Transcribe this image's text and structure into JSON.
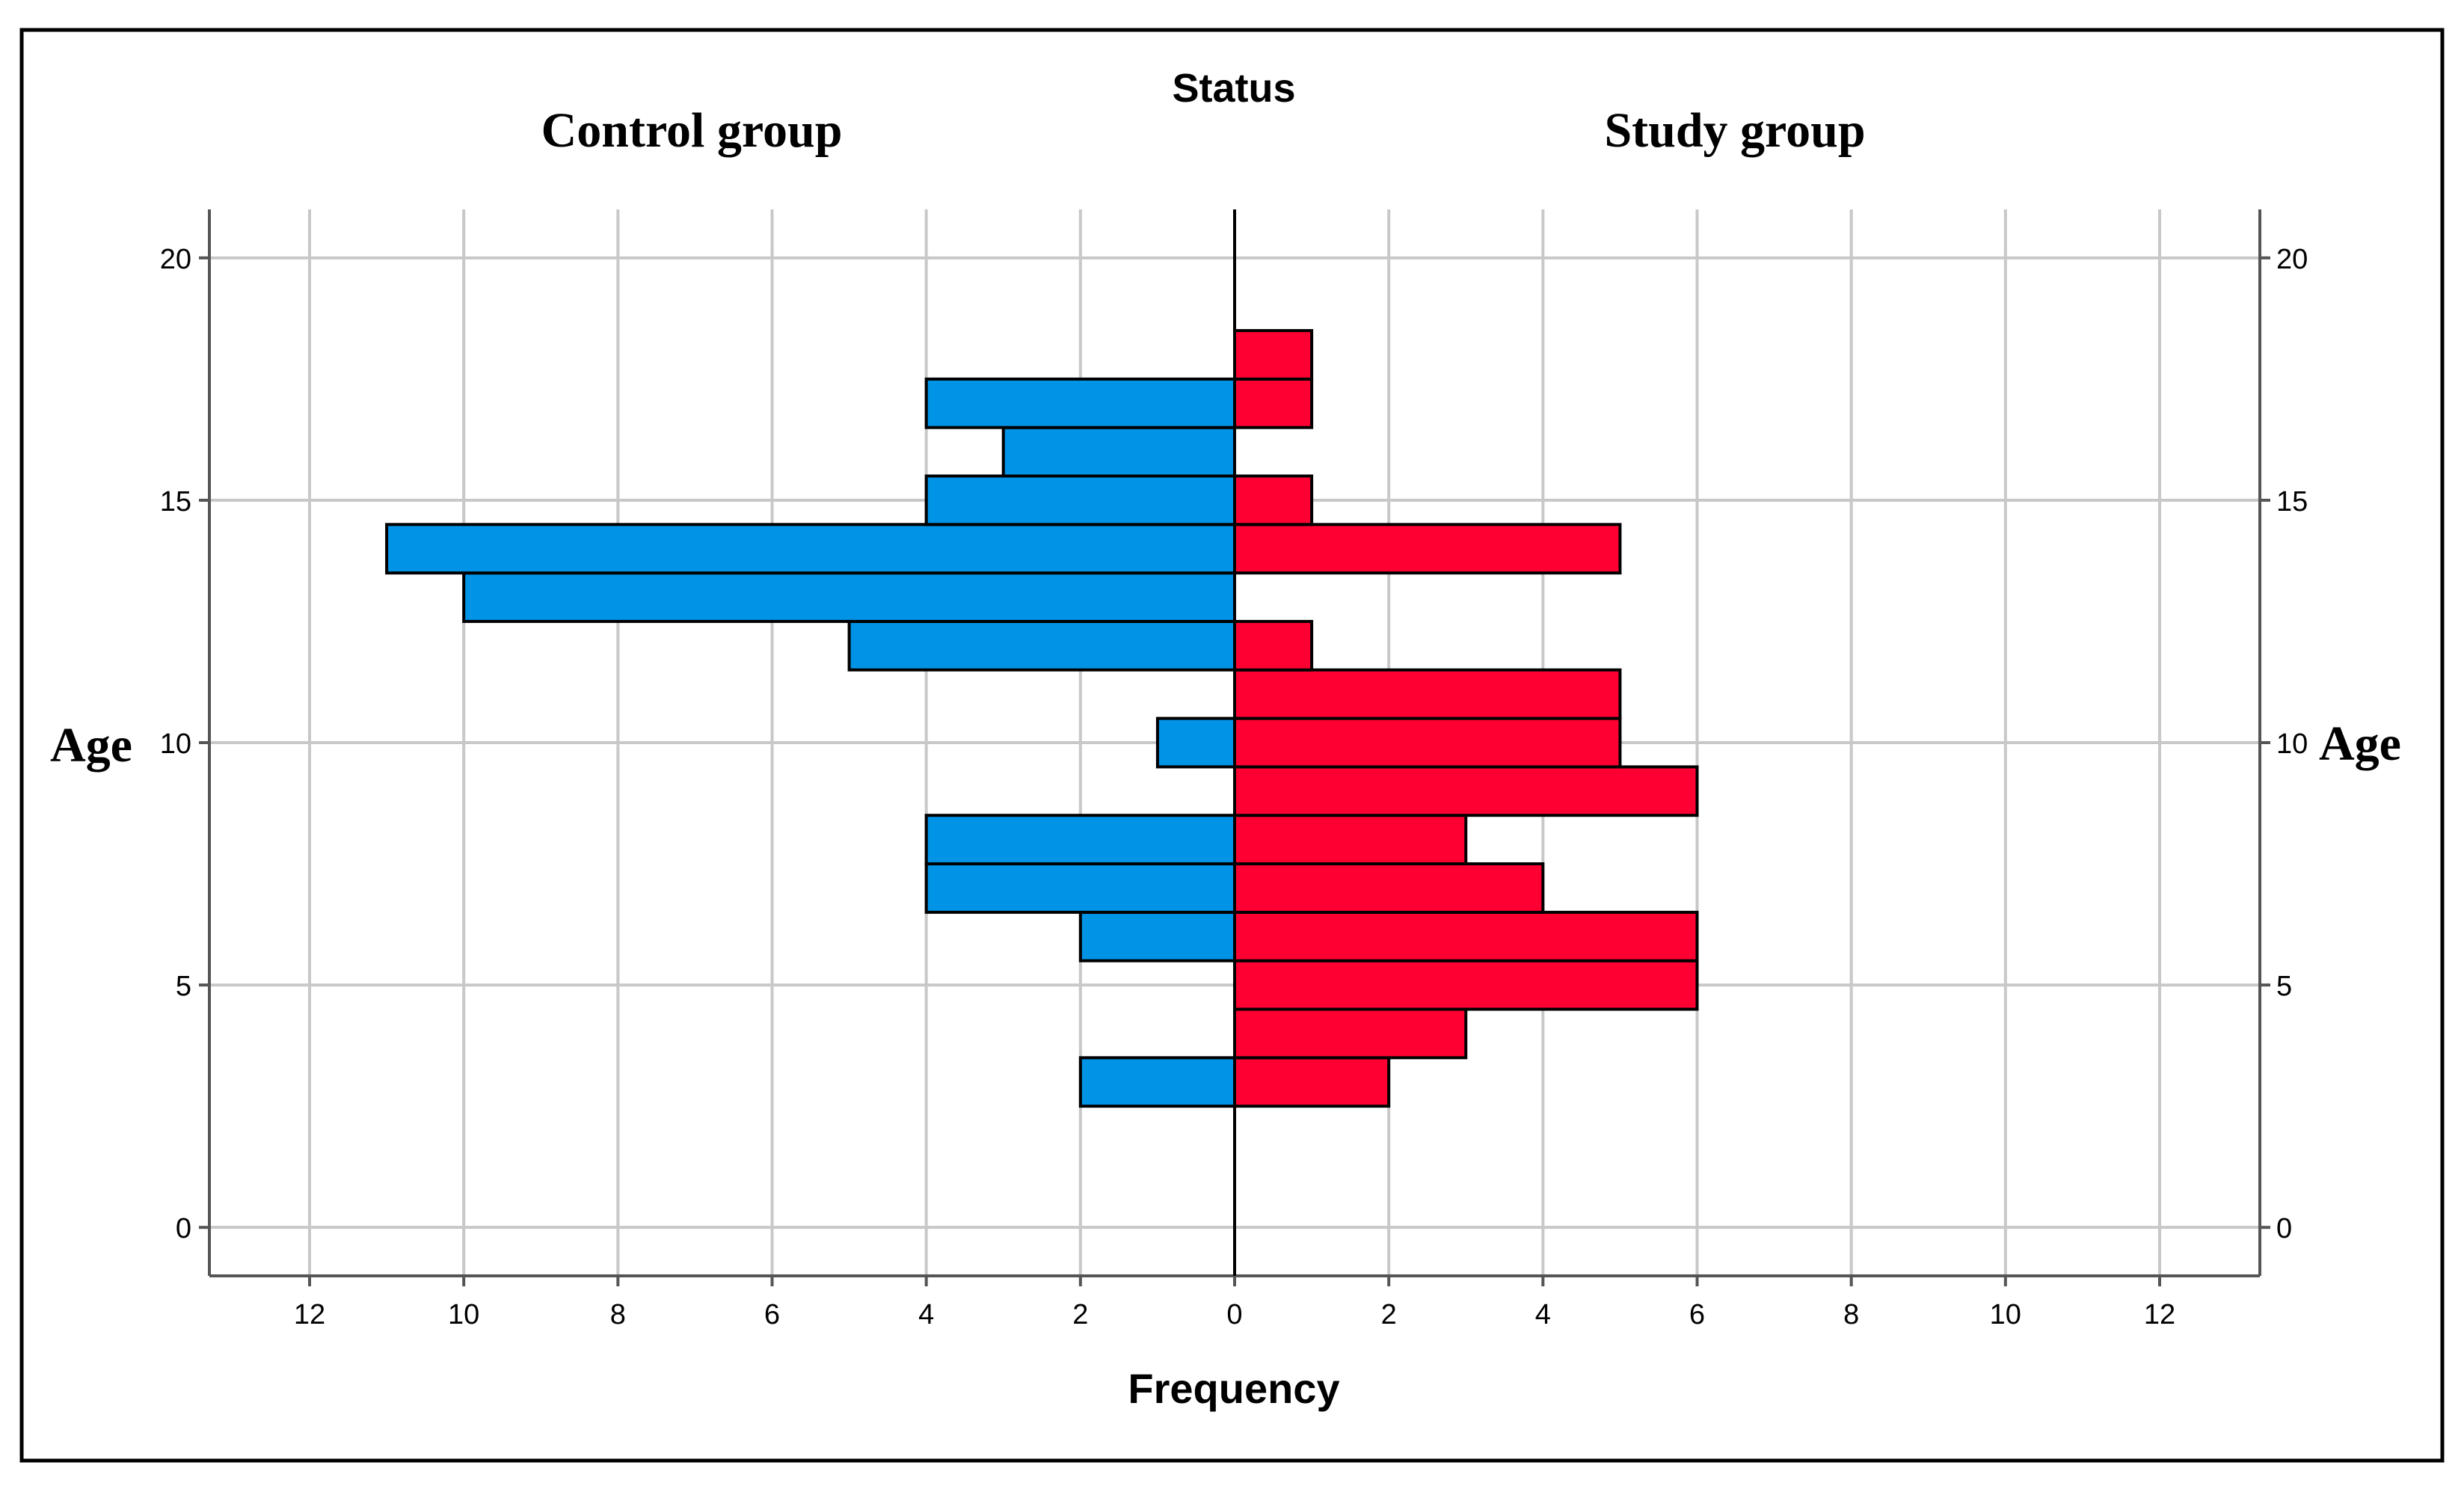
{
  "chart_data": {
    "type": "bar",
    "orientation": "horizontal",
    "layout": "population-pyramid",
    "title": "Status",
    "left_group_label": "Control group",
    "right_group_label": "Study group",
    "xlabel": "Frequency",
    "ylabel_left": "Age",
    "ylabel_right": "Age",
    "xlim": [
      -13.3,
      13.3
    ],
    "ylim": [
      -1,
      21
    ],
    "x_ticks": [
      -12,
      -10,
      -8,
      -6,
      -4,
      -2,
      0,
      2,
      4,
      6,
      8,
      10,
      12
    ],
    "x_tick_labels": [
      "12",
      "10",
      "8",
      "6",
      "4",
      "2",
      "0",
      "2",
      "4",
      "6",
      "8",
      "10",
      "12"
    ],
    "y_ticks": [
      0,
      5,
      10,
      15,
      20
    ],
    "y_tick_labels": [
      "0",
      "5",
      "10",
      "15",
      "20"
    ],
    "grid": true,
    "bin_width": 1,
    "series": [
      {
        "name": "Control group",
        "side": "left",
        "color": "#0093e6",
        "bins": [
          {
            "age": 3,
            "count": 2
          },
          {
            "age": 4,
            "count": 0
          },
          {
            "age": 5,
            "count": 0
          },
          {
            "age": 6,
            "count": 2
          },
          {
            "age": 7,
            "count": 4
          },
          {
            "age": 8,
            "count": 4
          },
          {
            "age": 9,
            "count": 0
          },
          {
            "age": 10,
            "count": 1
          },
          {
            "age": 11,
            "count": 0
          },
          {
            "age": 12,
            "count": 5
          },
          {
            "age": 13,
            "count": 10
          },
          {
            "age": 14,
            "count": 11
          },
          {
            "age": 15,
            "count": 4
          },
          {
            "age": 16,
            "count": 3
          },
          {
            "age": 17,
            "count": 4
          },
          {
            "age": 18,
            "count": 0
          }
        ]
      },
      {
        "name": "Study group",
        "side": "right",
        "color": "#ff0033",
        "bins": [
          {
            "age": 3,
            "count": 2
          },
          {
            "age": 4,
            "count": 3
          },
          {
            "age": 5,
            "count": 6
          },
          {
            "age": 6,
            "count": 6
          },
          {
            "age": 7,
            "count": 4
          },
          {
            "age": 8,
            "count": 3
          },
          {
            "age": 9,
            "count": 6
          },
          {
            "age": 10,
            "count": 5
          },
          {
            "age": 11,
            "count": 5
          },
          {
            "age": 12,
            "count": 1
          },
          {
            "age": 13,
            "count": 0
          },
          {
            "age": 14,
            "count": 5
          },
          {
            "age": 15,
            "count": 1
          },
          {
            "age": 16,
            "count": 0
          },
          {
            "age": 17,
            "count": 1
          },
          {
            "age": 18,
            "count": 1
          }
        ]
      }
    ]
  }
}
